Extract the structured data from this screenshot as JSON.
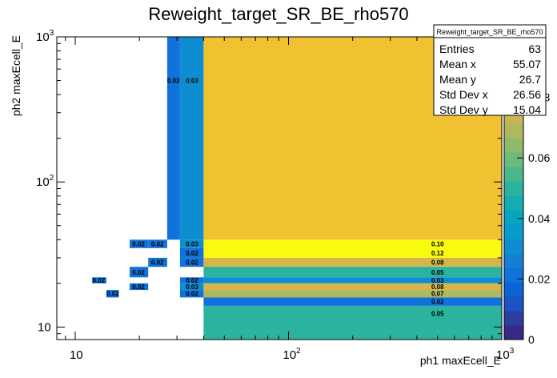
{
  "chart_data": {
    "type": "heatmap",
    "title": "Reweight_target_SR_BE_rho570",
    "xlabel": "ph1 maxEcell_E",
    "ylabel": "ph2 maxEcell_E",
    "x_scale": "log",
    "y_scale": "log",
    "xlim": [
      8.2,
      1000
    ],
    "ylim": [
      8.2,
      1000
    ],
    "zlim": [
      0,
      0.1
    ],
    "x_ticks": [
      {
        "value": 10,
        "label": "10"
      },
      {
        "value": 100,
        "label": "10",
        "sup": "2"
      },
      {
        "value": 1000,
        "label": "10",
        "sup": "3"
      }
    ],
    "y_ticks": [
      {
        "value": 10,
        "label": "10"
      },
      {
        "value": 100,
        "label": "10",
        "sup": "2"
      },
      {
        "value": 1000,
        "label": "10",
        "sup": "3"
      }
    ],
    "z_ticks": [
      {
        "value": 0,
        "label": "0"
      },
      {
        "value": 0.02,
        "label": "0.02"
      },
      {
        "value": 0.04,
        "label": "0.04"
      },
      {
        "value": 0.06,
        "label": "0.06"
      },
      {
        "value": 0.08,
        "label": "0.08"
      }
    ],
    "cells": [
      {
        "x0": 27,
        "x1": 31,
        "y0": 40,
        "y1": 1000,
        "value": 0.02,
        "label": "0.02",
        "lx": 28.9,
        "ly": 500
      },
      {
        "x0": 31,
        "x1": 40,
        "y0": 40,
        "y1": 1000,
        "value": 0.03,
        "label": "0.03",
        "lx": 35.3,
        "ly": 500
      },
      {
        "x0": 40,
        "x1": 1000,
        "y0": 40,
        "y1": 1000,
        "value": 0.09,
        "label": "",
        "lx": 0,
        "ly": 0
      },
      {
        "x0": 18,
        "x1": 22,
        "y0": 35,
        "y1": 40,
        "value": 0.02,
        "label": "0.02",
        "lx": 19.8,
        "ly": 37.4
      },
      {
        "x0": 22,
        "x1": 27,
        "y0": 35,
        "y1": 40,
        "value": 0.02,
        "label": "0.02",
        "lx": 24.3,
        "ly": 37.4
      },
      {
        "x0": 31,
        "x1": 40,
        "y0": 35,
        "y1": 40,
        "value": 0.03,
        "label": "0.03",
        "lx": 35.3,
        "ly": 37.4
      },
      {
        "x0": 40,
        "x1": 1000,
        "y0": 35,
        "y1": 40,
        "value": 0.1,
        "label": "0.10",
        "lx": 500,
        "ly": 37.4
      },
      {
        "x0": 31,
        "x1": 40,
        "y0": 30,
        "y1": 35,
        "value": 0.02,
        "label": "0.02",
        "lx": 35.3,
        "ly": 32.4
      },
      {
        "x0": 40,
        "x1": 1000,
        "y0": 30,
        "y1": 35,
        "value": 0.12,
        "label": "0.12",
        "lx": 500,
        "ly": 32.4
      },
      {
        "x0": 22,
        "x1": 27,
        "y0": 26,
        "y1": 30,
        "value": 0.02,
        "label": "0.02",
        "lx": 24.3,
        "ly": 27.9
      },
      {
        "x0": 31,
        "x1": 40,
        "y0": 26,
        "y1": 30,
        "value": 0.02,
        "label": "0.02",
        "lx": 35.3,
        "ly": 27.9
      },
      {
        "x0": 40,
        "x1": 1000,
        "y0": 26,
        "y1": 30,
        "value": 0.08,
        "label": "0.08",
        "lx": 500,
        "ly": 27.9
      },
      {
        "x0": 18,
        "x1": 22,
        "y0": 22,
        "y1": 26,
        "value": 0.02,
        "label": "0.02",
        "lx": 19.8,
        "ly": 23.9
      },
      {
        "x0": 40,
        "x1": 1000,
        "y0": 22,
        "y1": 26,
        "value": 0.05,
        "label": "0.05",
        "lx": 500,
        "ly": 23.9
      },
      {
        "x0": 12,
        "x1": 14,
        "y0": 20,
        "y1": 22,
        "value": 0.02,
        "label": "0.02",
        "lx": 12.9,
        "ly": 21
      },
      {
        "x0": 31,
        "x1": 40,
        "y0": 20,
        "y1": 22,
        "value": 0.02,
        "label": "0.02",
        "lx": 35.3,
        "ly": 21
      },
      {
        "x0": 40,
        "x1": 1000,
        "y0": 20,
        "y1": 22,
        "value": 0.03,
        "label": "0.03",
        "lx": 500,
        "ly": 21
      },
      {
        "x0": 18,
        "x1": 22,
        "y0": 18,
        "y1": 20,
        "value": 0.02,
        "label": "0.02",
        "lx": 19.8,
        "ly": 19
      },
      {
        "x0": 31,
        "x1": 40,
        "y0": 18,
        "y1": 20,
        "value": 0.03,
        "label": "0.03",
        "lx": 35.3,
        "ly": 19
      },
      {
        "x0": 40,
        "x1": 1000,
        "y0": 18,
        "y1": 20,
        "value": 0.08,
        "label": "0.08",
        "lx": 500,
        "ly": 19
      },
      {
        "x0": 14,
        "x1": 16,
        "y0": 16,
        "y1": 18,
        "value": 0.02,
        "label": "0.02",
        "lx": 15,
        "ly": 17
      },
      {
        "x0": 31,
        "x1": 40,
        "y0": 16,
        "y1": 18,
        "value": 0.02,
        "label": "0.02",
        "lx": 35.3,
        "ly": 17
      },
      {
        "x0": 40,
        "x1": 1000,
        "y0": 16,
        "y1": 18,
        "value": 0.07,
        "label": "0.07",
        "lx": 500,
        "ly": 17
      },
      {
        "x0": 40,
        "x1": 1000,
        "y0": 14,
        "y1": 16,
        "value": 0.02,
        "label": "0.02",
        "lx": 500,
        "ly": 15
      },
      {
        "x0": 40,
        "x1": 1000,
        "y0": 8.2,
        "y1": 14,
        "value": 0.05,
        "label": "0.05",
        "lx": 500,
        "ly": 12.4
      }
    ],
    "stats": {
      "name": "Reweight_target_SR_BE_rho570",
      "rows": [
        {
          "label": "Entries",
          "value": "63"
        },
        {
          "label": "Mean x",
          "value": "55.07"
        },
        {
          "label": "Mean y",
          "value": "26.7"
        },
        {
          "label": "Std Dev x",
          "value": "26.56"
        },
        {
          "label": "Std Dev y",
          "value": "15.04"
        }
      ]
    },
    "palette": [
      "#352a87",
      "#2d3ea1",
      "#1d53c3",
      "#0b63d6",
      "#1072da",
      "#1380d6",
      "#0f8dd2",
      "#079bcb",
      "#06a6c0",
      "#14adb0",
      "#2bb39f",
      "#4bb78d",
      "#6dba7b",
      "#8fba6a",
      "#afb85d",
      "#c8b654",
      "#d5b64c",
      "#e0ba3d",
      "#f0c130",
      "#fbd424",
      "#f9fb0e"
    ],
    "palette_top_value": 0.1
  }
}
